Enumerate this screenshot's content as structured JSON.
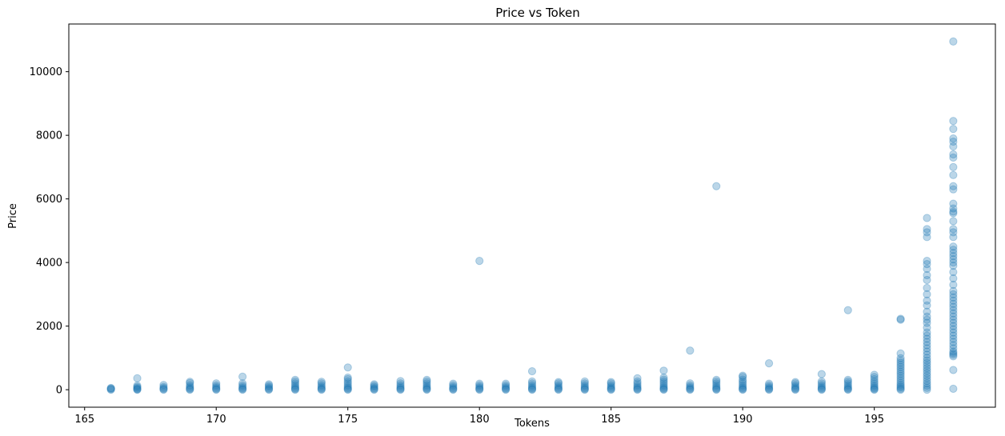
{
  "chart_data": {
    "type": "scatter",
    "title": "Price vs Token",
    "xlabel": "Tokens",
    "ylabel": "Price",
    "xlim": [
      164.4,
      199.6
    ],
    "ylim": [
      -550,
      11500
    ],
    "xticks": [
      165,
      170,
      175,
      180,
      185,
      190,
      195
    ],
    "yticks": [
      0,
      2000,
      4000,
      6000,
      8000,
      10000
    ],
    "grid": false,
    "marker_color": "#1f77b4",
    "marker_alpha": 0.3,
    "columns": [
      {
        "x": 166,
        "values": [
          0,
          20,
          40,
          55
        ]
      },
      {
        "x": 167,
        "values": [
          0,
          10,
          30,
          60,
          90,
          130,
          360
        ]
      },
      {
        "x": 168,
        "values": [
          0,
          20,
          50,
          90,
          150
        ]
      },
      {
        "x": 169,
        "values": [
          0,
          20,
          50,
          90,
          140,
          210,
          250
        ]
      },
      {
        "x": 170,
        "values": [
          0,
          20,
          50,
          90,
          140,
          200
        ]
      },
      {
        "x": 171,
        "values": [
          0,
          20,
          50,
          90,
          140,
          200,
          410
        ]
      },
      {
        "x": 172,
        "values": [
          0,
          20,
          50,
          90,
          130,
          170
        ]
      },
      {
        "x": 173,
        "values": [
          0,
          20,
          50,
          90,
          140,
          200,
          260,
          310
        ]
      },
      {
        "x": 174,
        "values": [
          0,
          20,
          50,
          90,
          140,
          200,
          250
        ]
      },
      {
        "x": 175,
        "values": [
          0,
          20,
          50,
          90,
          140,
          200,
          260,
          330,
          380,
          700
        ]
      },
      {
        "x": 176,
        "values": [
          0,
          20,
          50,
          90,
          130,
          170
        ]
      },
      {
        "x": 177,
        "values": [
          0,
          20,
          50,
          90,
          140,
          200,
          270
        ]
      },
      {
        "x": 178,
        "values": [
          0,
          20,
          50,
          90,
          140,
          200,
          260,
          310
        ]
      },
      {
        "x": 179,
        "values": [
          0,
          20,
          50,
          90,
          140,
          190
        ]
      },
      {
        "x": 180,
        "values": [
          0,
          20,
          50,
          90,
          140,
          190,
          4050
        ]
      },
      {
        "x": 181,
        "values": [
          0,
          20,
          50,
          90,
          140,
          190
        ]
      },
      {
        "x": 182,
        "values": [
          0,
          20,
          50,
          90,
          140,
          200,
          260,
          580
        ]
      },
      {
        "x": 183,
        "values": [
          0,
          20,
          50,
          90,
          140,
          200,
          240
        ]
      },
      {
        "x": 184,
        "values": [
          0,
          20,
          50,
          90,
          140,
          200,
          260
        ]
      },
      {
        "x": 185,
        "values": [
          0,
          20,
          50,
          90,
          140,
          200,
          240
        ]
      },
      {
        "x": 186,
        "values": [
          0,
          20,
          50,
          90,
          140,
          200,
          260,
          360
        ]
      },
      {
        "x": 187,
        "values": [
          0,
          20,
          50,
          90,
          140,
          200,
          260,
          320,
          380,
          600
        ]
      },
      {
        "x": 188,
        "values": [
          0,
          20,
          50,
          90,
          140,
          200,
          1230
        ]
      },
      {
        "x": 189,
        "values": [
          0,
          20,
          50,
          90,
          140,
          200,
          260,
          310,
          6400
        ]
      },
      {
        "x": 190,
        "values": [
          0,
          20,
          50,
          90,
          140,
          200,
          260,
          320,
          400,
          440
        ]
      },
      {
        "x": 191,
        "values": [
          0,
          20,
          50,
          90,
          140,
          190,
          830
        ]
      },
      {
        "x": 192,
        "values": [
          0,
          20,
          50,
          90,
          140,
          200,
          240
        ]
      },
      {
        "x": 193,
        "values": [
          0,
          20,
          50,
          90,
          140,
          200,
          260,
          490
        ]
      },
      {
        "x": 194,
        "values": [
          0,
          20,
          50,
          90,
          140,
          200,
          260,
          310,
          2500
        ]
      },
      {
        "x": 195,
        "values": [
          0,
          20,
          50,
          90,
          140,
          200,
          260,
          330,
          400,
          470
        ]
      },
      {
        "x": 196,
        "values": [
          0,
          30,
          70,
          110,
          160,
          220,
          290,
          360,
          430,
          500,
          570,
          640,
          710,
          780,
          850,
          920,
          990,
          1140,
          2200,
          2230
        ]
      },
      {
        "x": 197,
        "values": [
          0,
          60,
          130,
          200,
          280,
          360,
          440,
          520,
          600,
          680,
          760,
          840,
          920,
          1000,
          1100,
          1200,
          1300,
          1400,
          1500,
          1600,
          1700,
          1800,
          1950,
          2100,
          2200,
          2300,
          2450,
          2650,
          2800,
          3000,
          3200,
          3450,
          3600,
          3800,
          3950,
          4050,
          4800,
          4950,
          5050,
          5400
        ]
      },
      {
        "x": 198,
        "values": [
          30,
          620,
          1050,
          1100,
          1150,
          1200,
          1300,
          1400,
          1500,
          1600,
          1700,
          1800,
          1900,
          2000,
          2100,
          2200,
          2300,
          2400,
          2500,
          2600,
          2700,
          2800,
          2900,
          3000,
          3100,
          3300,
          3500,
          3700,
          3900,
          4000,
          4100,
          4200,
          4300,
          4400,
          4500,
          4800,
          4950,
          5050,
          5300,
          5550,
          5600,
          5700,
          5850,
          6300,
          6400,
          6750,
          7000,
          7300,
          7400,
          7650,
          7800,
          7900,
          8200,
          8450,
          10950
        ]
      }
    ]
  }
}
